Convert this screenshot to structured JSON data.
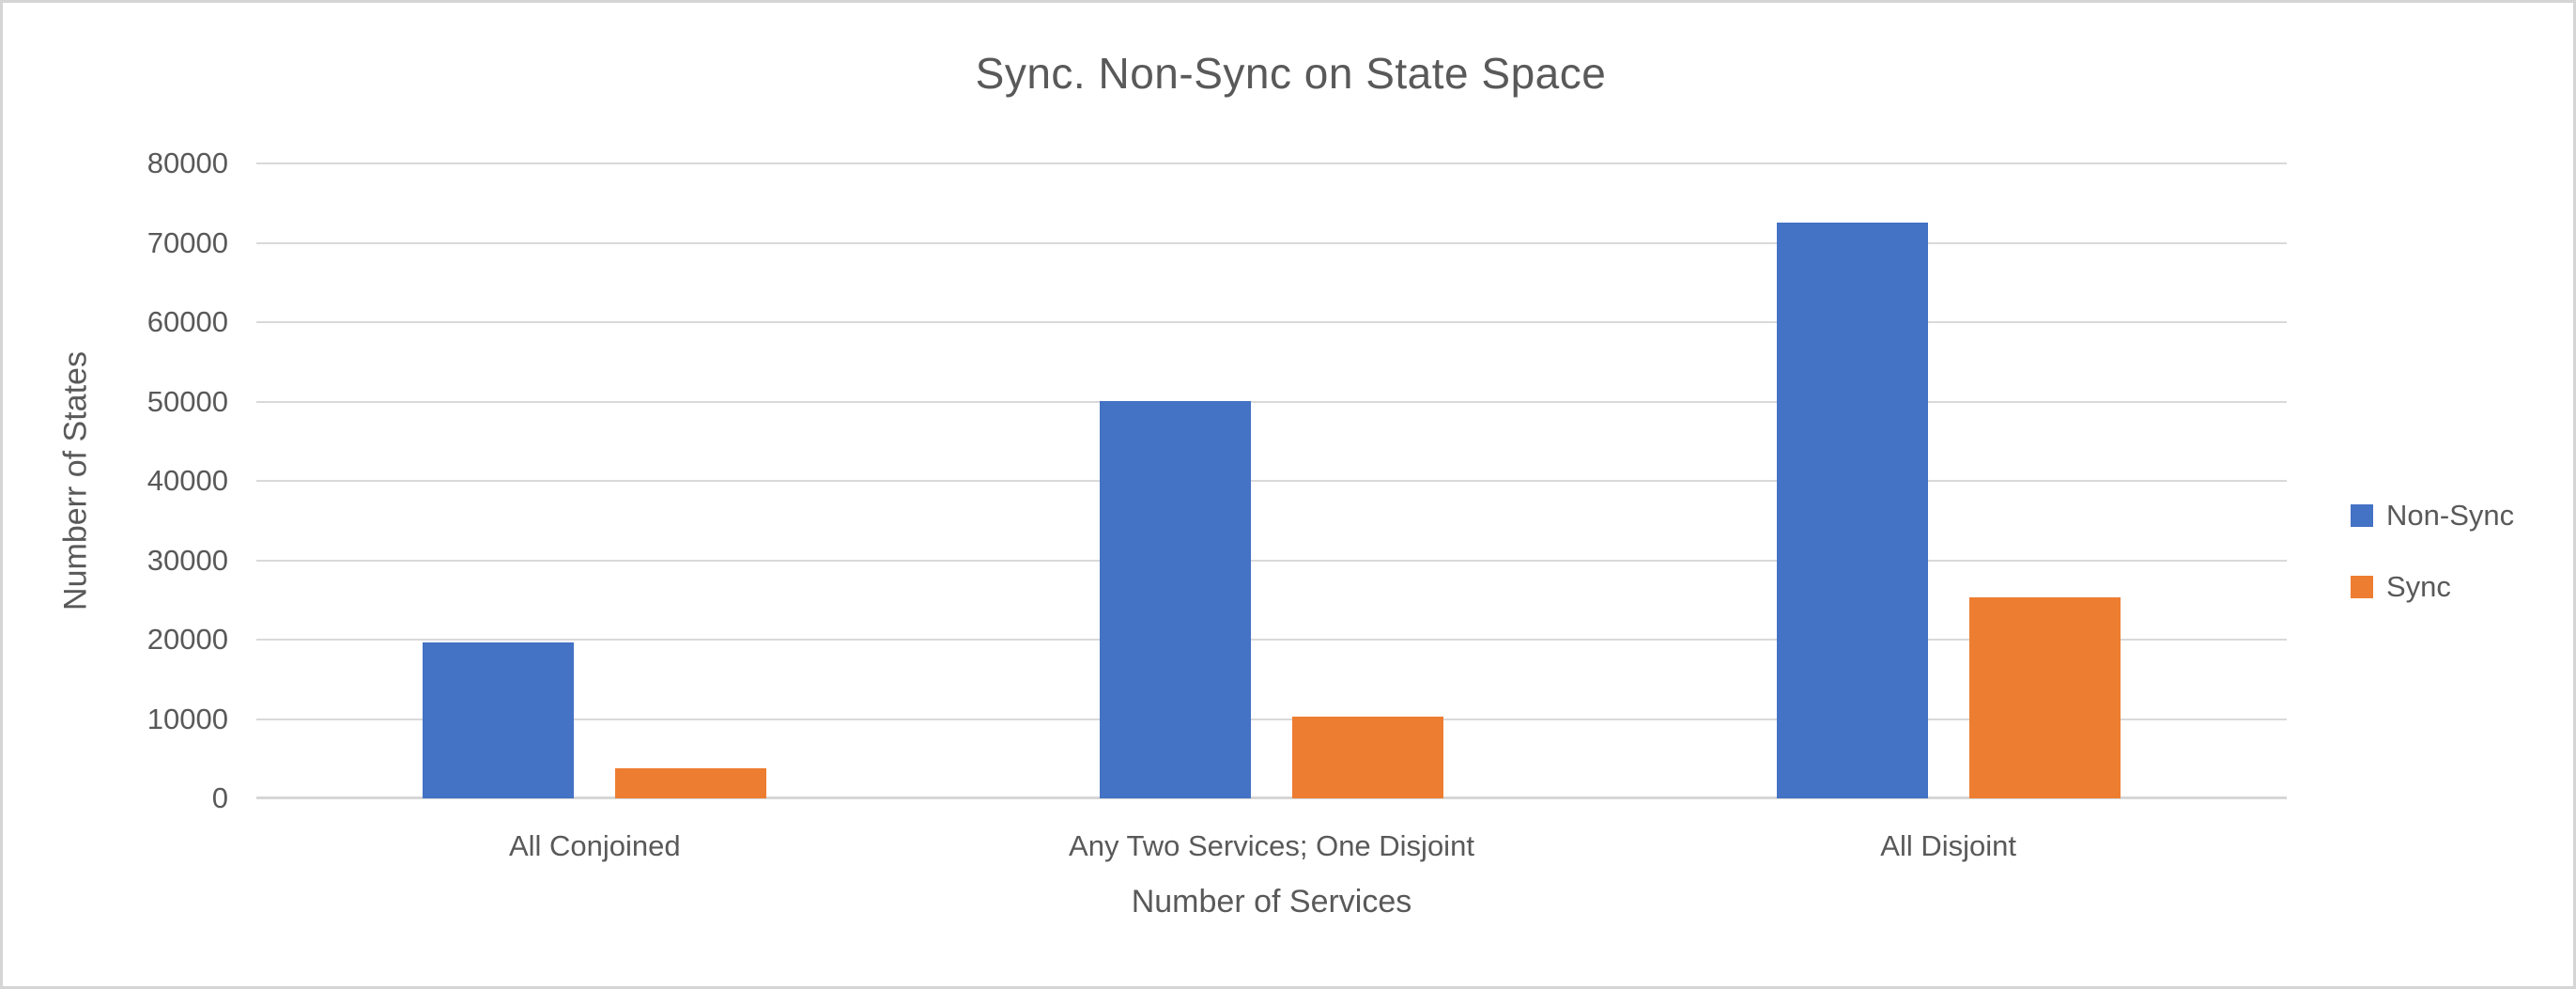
{
  "chart_data": {
    "type": "bar",
    "title": "Sync. Non-Sync on State Space",
    "xlabel": "Number of Services",
    "ylabel": "Numberr of States",
    "categories": [
      "All Conjoined",
      "Any Two Services; One Disjoint",
      "All Disjoint"
    ],
    "series": [
      {
        "name": "Non-Sync",
        "color": "#4472C4",
        "values": [
          19600,
          50000,
          72600
        ]
      },
      {
        "name": "Sync",
        "color": "#ED7D31",
        "values": [
          3800,
          10300,
          25300
        ]
      }
    ],
    "ylim": [
      0,
      80000
    ],
    "ytick_step": 10000,
    "ytick_labels": [
      "0",
      "10000",
      "20000",
      "30000",
      "40000",
      "50000",
      "60000",
      "70000",
      "80000"
    ],
    "grid": true,
    "gridline_color": "#D9D9D9",
    "text_color": "#595959",
    "legend_position": "right",
    "legend_items": [
      "Non-Sync",
      "Sync"
    ]
  }
}
